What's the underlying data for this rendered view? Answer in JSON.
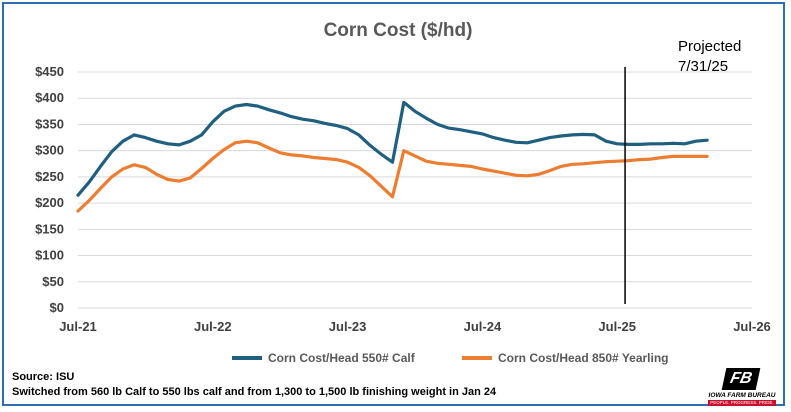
{
  "chart_data": {
    "type": "line",
    "title": "Corn Cost  ($/hd)",
    "xlabel": "",
    "ylabel": "",
    "ylim": [
      0,
      450
    ],
    "y_ticks": [
      "$0",
      "$50",
      "$100",
      "$150",
      "$200",
      "$250",
      "$300",
      "$350",
      "$400",
      "$450"
    ],
    "x_ticks": [
      "Jul-21",
      "Jul-22",
      "Jul-23",
      "Jul-24",
      "Jul-25",
      "Jul-26"
    ],
    "x_range_months": [
      0,
      60
    ],
    "grid": true,
    "legend_placement": "bottom",
    "annotation": {
      "text_lines": [
        "Projected",
        "7/31/25"
      ],
      "x_month": 48.7
    },
    "series": [
      {
        "name": "Corn Cost/Head 550# Calf",
        "color": "#1f5f80",
        "x": [
          0,
          1,
          2,
          3,
          4,
          5,
          6,
          7,
          8,
          9,
          10,
          11,
          12,
          13,
          14,
          15,
          16,
          17,
          18,
          19,
          20,
          21,
          22,
          23,
          24,
          25,
          26,
          27,
          28,
          29,
          30,
          31,
          32,
          33,
          34,
          35,
          36,
          37,
          38,
          39,
          40,
          41,
          42,
          43,
          44,
          45,
          46,
          47,
          48,
          49,
          50,
          51,
          52,
          53,
          54,
          55,
          56,
          57,
          58,
          59,
          60
        ],
        "y": [
          215,
          240,
          270,
          298,
          318,
          330,
          325,
          318,
          313,
          311,
          318,
          330,
          355,
          375,
          385,
          388,
          385,
          378,
          372,
          365,
          360,
          357,
          352,
          348,
          342,
          330,
          310,
          293,
          278,
          392,
          375,
          362,
          350,
          343,
          340,
          336,
          332,
          325,
          320,
          316,
          315,
          320,
          325,
          328,
          330,
          331,
          330,
          318,
          313,
          312,
          312,
          313,
          313,
          314,
          313,
          318,
          320,
          null,
          null,
          null,
          null
        ]
      },
      {
        "name": "Corn Cost/Head 850# Yearling",
        "color": "#ed7d31",
        "x": [
          0,
          1,
          2,
          3,
          4,
          5,
          6,
          7,
          8,
          9,
          10,
          11,
          12,
          13,
          14,
          15,
          16,
          17,
          18,
          19,
          20,
          21,
          22,
          23,
          24,
          25,
          26,
          27,
          28,
          29,
          30,
          31,
          32,
          33,
          34,
          35,
          36,
          37,
          38,
          39,
          40,
          41,
          42,
          43,
          44,
          45,
          46,
          47,
          48,
          49,
          50,
          51,
          52,
          53,
          54,
          55,
          56,
          57,
          58,
          59,
          60
        ],
        "y": [
          185,
          205,
          228,
          250,
          265,
          273,
          268,
          255,
          245,
          242,
          248,
          266,
          285,
          302,
          315,
          318,
          315,
          305,
          296,
          292,
          290,
          287,
          285,
          283,
          278,
          268,
          252,
          232,
          212,
          300,
          290,
          280,
          276,
          274,
          272,
          270,
          265,
          261,
          257,
          253,
          252,
          255,
          262,
          270,
          274,
          275,
          277,
          279,
          280,
          281,
          283,
          284,
          287,
          289,
          289,
          289,
          289,
          null,
          null,
          null,
          null
        ]
      }
    ]
  },
  "footnotes": {
    "source": "Source: ISU",
    "note": "Switched from 560 lb Calf  to 550 lbs calf and from 1,300 to 1,500 lb finishing weight in Jan 24"
  },
  "logo": {
    "mark": "FB",
    "name": "IOWA FARM BUREAU",
    "tagline": "PEOPLE. PROGRESS. PRIDE."
  },
  "colors": {
    "frame_border": "#2f6fb0",
    "gridline": "#d9d9d9",
    "projection_line": "#000000"
  }
}
